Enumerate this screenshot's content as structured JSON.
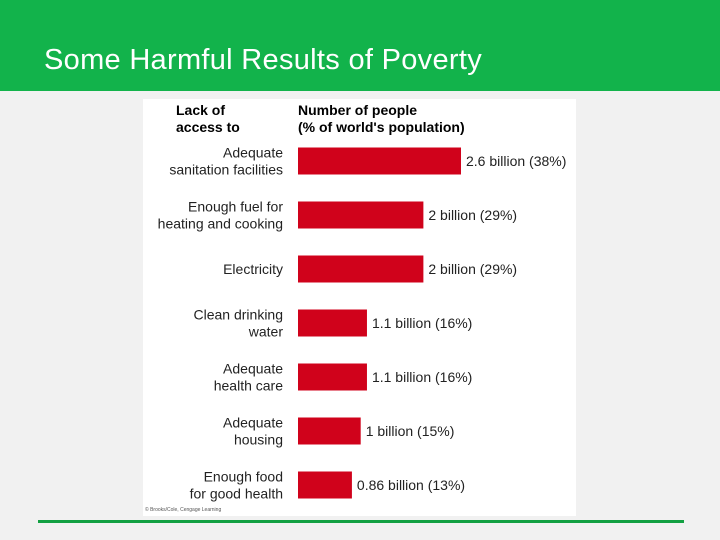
{
  "slide": {
    "title": "Some Harmful Results of Poverty",
    "credit": "© Brooks/Cole, Cengage Learning"
  },
  "colors": {
    "header": "#12b34b",
    "bar": "#d0021b",
    "rule": "#12a042"
  },
  "chart_data": {
    "type": "bar",
    "orientation": "horizontal",
    "category_header": [
      "Lack of",
      "access to"
    ],
    "value_header": [
      "Number of people",
      "(% of world's population)"
    ],
    "categories": [
      [
        "Adequate",
        "sanitation facilities"
      ],
      [
        "Enough fuel for",
        "heating and cooking"
      ],
      [
        "Electricity"
      ],
      [
        "Clean drinking",
        "water"
      ],
      [
        "Adequate",
        "health care"
      ],
      [
        "Adequate",
        "housing"
      ],
      [
        "Enough food",
        "for good health"
      ]
    ],
    "values": [
      2.6,
      2,
      2,
      1.1,
      1.1,
      1,
      0.86
    ],
    "value_unit": "billion",
    "data_labels": [
      "2.6 billion (38%)",
      "2 billion (29%)",
      "2 billion (29%)",
      "1.1 billion (16%)",
      "1.1 billion (16%)",
      "1 billion (15%)",
      "0.86 billion (13%)"
    ],
    "xlim": [
      0,
      2.6
    ],
    "grid": false,
    "legend": "none"
  }
}
